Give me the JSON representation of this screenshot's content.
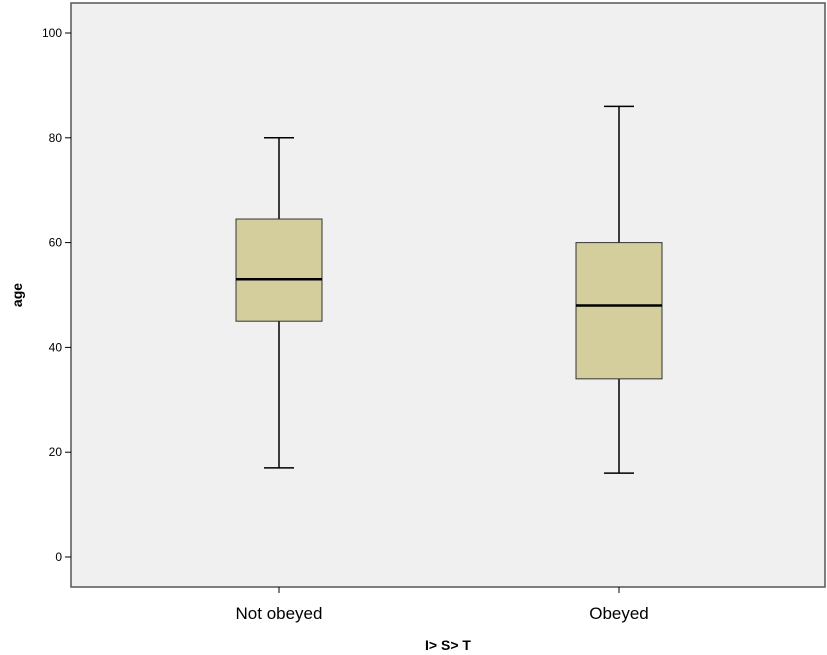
{
  "chart_data": {
    "type": "boxplot",
    "title": "",
    "xlabel": "I> S> T",
    "ylabel": "age",
    "ylim": [
      -5,
      105
    ],
    "yticks": [
      0,
      20,
      40,
      60,
      80,
      100
    ],
    "ytick_labels": [
      "0",
      "20",
      "40",
      "60",
      "80",
      "100"
    ],
    "categories": [
      "Not obeyed",
      "Obeyed"
    ],
    "boxes": [
      {
        "category": "Not obeyed",
        "min": 17,
        "q1": 45,
        "median": 53,
        "q3": 64.5,
        "max": 80
      },
      {
        "category": "Obeyed",
        "min": 16,
        "q1": 34,
        "median": 48,
        "q3": 60,
        "max": 86
      }
    ],
    "grid": false,
    "legend": "none",
    "colors": {
      "plot_background": "#f0f0f0",
      "box_fill": "#d3ce9c",
      "line": "#000000",
      "frame": "#555555"
    }
  }
}
